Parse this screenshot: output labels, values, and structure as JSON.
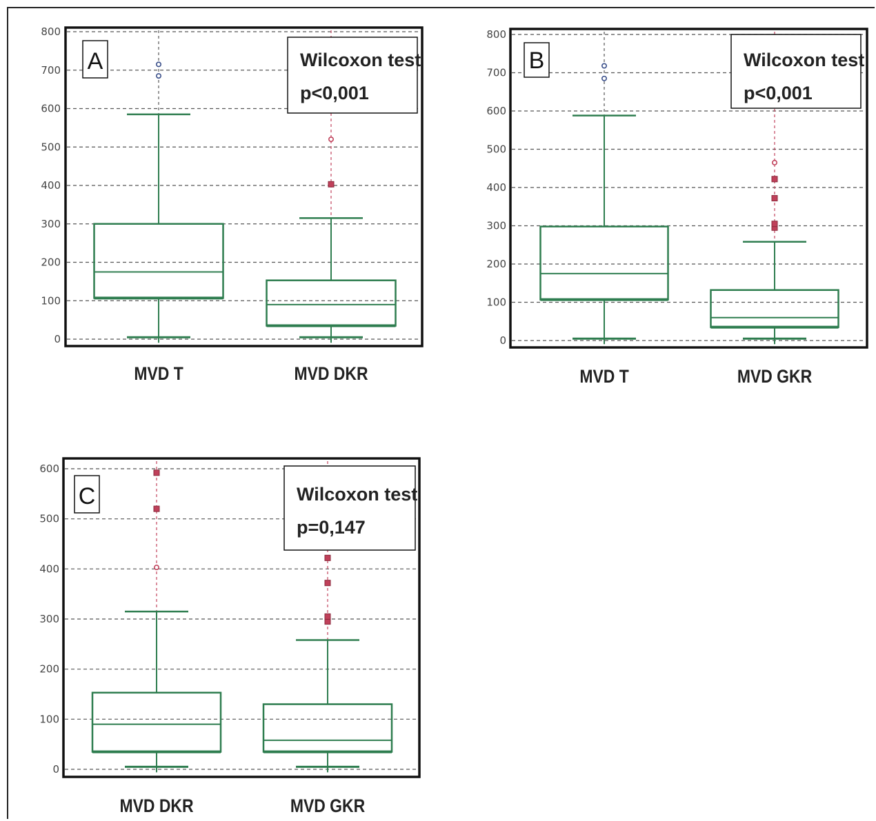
{
  "colors": {
    "box": "#2e7d4f",
    "outlier": "#c0405a",
    "grid": "#555555",
    "frame": "#111111"
  },
  "chart_data": [
    {
      "type": "box",
      "panel_label": "A",
      "stat_test": "Wilcoxon test",
      "stat_result": "p<0,001",
      "ylim": [
        0,
        800
      ],
      "yticks": [
        "0",
        "100",
        "200",
        "300",
        "400",
        "500",
        "600",
        "700",
        "800"
      ],
      "grid": true,
      "categories": [
        "MVD T",
        "MVD DKR"
      ],
      "boxes": [
        {
          "min": 5,
          "q1": 107,
          "median": 175,
          "q3": 300,
          "max": 585,
          "outliers": [
            {
              "value": 685,
              "kind": "circle"
            },
            {
              "value": 715,
              "kind": "circle"
            }
          ]
        },
        {
          "min": 5,
          "q1": 35,
          "median": 90,
          "q3": 153,
          "max": 315,
          "outliers": [
            {
              "value": 403,
              "kind": "square"
            },
            {
              "value": 520,
              "kind": "circle"
            }
          ]
        }
      ]
    },
    {
      "type": "box",
      "panel_label": "B",
      "stat_test": "Wilcoxon test",
      "stat_result": "p<0,001",
      "ylim": [
        0,
        800
      ],
      "yticks": [
        "0",
        "100",
        "200",
        "300",
        "400",
        "500",
        "600",
        "700",
        "800"
      ],
      "grid": true,
      "categories": [
        "MVD T",
        "MVD GKR"
      ],
      "boxes": [
        {
          "min": 5,
          "q1": 107,
          "median": 175,
          "q3": 298,
          "max": 588,
          "outliers": [
            {
              "value": 685,
              "kind": "circle"
            },
            {
              "value": 718,
              "kind": "circle"
            }
          ]
        },
        {
          "min": 5,
          "q1": 35,
          "median": 60,
          "q3": 132,
          "max": 258,
          "outliers": [
            {
              "value": 295,
              "kind": "square"
            },
            {
              "value": 305,
              "kind": "square"
            },
            {
              "value": 372,
              "kind": "square"
            },
            {
              "value": 422,
              "kind": "square"
            },
            {
              "value": 465,
              "kind": "circle"
            }
          ]
        }
      ]
    },
    {
      "type": "box",
      "panel_label": "C",
      "stat_test": "Wilcoxon test",
      "stat_result": "p=0,147",
      "ylim": [
        0,
        600
      ],
      "yticks": [
        "0",
        "100",
        "200",
        "300",
        "400",
        "500",
        "600"
      ],
      "grid": true,
      "categories": [
        "MVD DKR",
        "MVD GKR"
      ],
      "boxes": [
        {
          "min": 5,
          "q1": 35,
          "median": 90,
          "q3": 153,
          "max": 315,
          "outliers": [
            {
              "value": 403,
              "kind": "circle"
            },
            {
              "value": 520,
              "kind": "square"
            },
            {
              "value": 592,
              "kind": "square"
            }
          ]
        },
        {
          "min": 5,
          "q1": 35,
          "median": 58,
          "q3": 130,
          "max": 258,
          "outliers": [
            {
              "value": 295,
              "kind": "square"
            },
            {
              "value": 305,
              "kind": "square"
            },
            {
              "value": 372,
              "kind": "square"
            },
            {
              "value": 422,
              "kind": "square"
            }
          ]
        }
      ]
    }
  ]
}
